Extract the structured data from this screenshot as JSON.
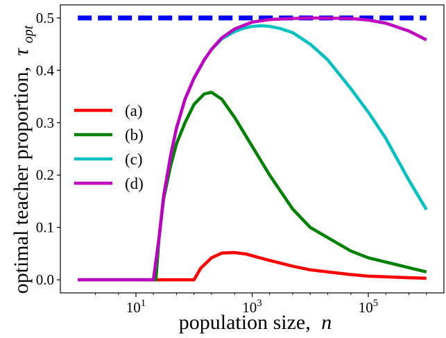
{
  "chart_data": {
    "type": "line",
    "xlabel_main": "population size,",
    "xlabel_symbol": "n",
    "ylabel_main": "optimal teacher proportion,",
    "ylabel_symbol": "τ",
    "ylabel_subscript": "opt",
    "xscale": "log",
    "xlim": [
      0.5,
      2000000
    ],
    "ylim": [
      -0.025,
      0.525
    ],
    "xticks": [
      {
        "base": "10",
        "exp": "1",
        "value": 10
      },
      {
        "base": "10",
        "exp": "3",
        "value": 1000
      },
      {
        "base": "10",
        "exp": "5",
        "value": 100000
      }
    ],
    "xminor_ticks": [
      2,
      5,
      20,
      50,
      100,
      200,
      500,
      2000,
      5000,
      10000,
      20000,
      50000,
      200000,
      500000,
      1000000
    ],
    "yticks": [
      {
        "label": "0.0",
        "value": 0.0
      },
      {
        "label": "0.1",
        "value": 0.1
      },
      {
        "label": "0.2",
        "value": 0.2
      },
      {
        "label": "0.3",
        "value": 0.3
      },
      {
        "label": "0.4",
        "value": 0.4
      },
      {
        "label": "0.5",
        "value": 0.5
      }
    ],
    "legend_position": "center-left",
    "reference_line": {
      "y": 0.5,
      "x_from": 1,
      "x_to": 1000000,
      "color": "#0000ff",
      "style": "dashed"
    },
    "series": [
      {
        "name": "(a)",
        "color": "#ff0000",
        "x": [
          1,
          5,
          10,
          50,
          100,
          130,
          200,
          300,
          500,
          800,
          1000,
          2000,
          5000,
          10000,
          50000,
          100000,
          500000,
          1000000
        ],
        "y": [
          0,
          0,
          0,
          0,
          0,
          0.022,
          0.042,
          0.051,
          0.052,
          0.049,
          0.046,
          0.037,
          0.026,
          0.019,
          0.01,
          0.007,
          0.004,
          0.003
        ]
      },
      {
        "name": "(b)",
        "color": "#008000",
        "x": [
          1,
          10,
          22,
          25,
          30,
          40,
          50,
          70,
          100,
          150,
          200,
          300,
          500,
          1000,
          2000,
          5000,
          10000,
          50000,
          100000,
          1000000
        ],
        "y": [
          0,
          0,
          0,
          0.08,
          0.155,
          0.22,
          0.26,
          0.3,
          0.335,
          0.355,
          0.358,
          0.345,
          0.31,
          0.255,
          0.2,
          0.135,
          0.1,
          0.055,
          0.042,
          0.015
        ]
      },
      {
        "name": "(c)",
        "color": "#00c0c0",
        "x": [
          1,
          10,
          20,
          25,
          30,
          40,
          50,
          70,
          100,
          150,
          200,
          300,
          500,
          700,
          1000,
          1500,
          2000,
          3000,
          5000,
          10000,
          20000,
          50000,
          100000,
          200000,
          500000,
          1000000
        ],
        "y": [
          0,
          0,
          0,
          0.08,
          0.16,
          0.24,
          0.29,
          0.345,
          0.385,
          0.42,
          0.44,
          0.46,
          0.474,
          0.48,
          0.484,
          0.485,
          0.484,
          0.48,
          0.472,
          0.45,
          0.42,
          0.365,
          0.32,
          0.27,
          0.19,
          0.134
        ]
      },
      {
        "name": "(d)",
        "color": "#c000c0",
        "x": [
          1,
          10,
          20,
          25,
          30,
          40,
          50,
          70,
          100,
          150,
          200,
          300,
          500,
          1000,
          2000,
          5000,
          10000,
          50000,
          100000,
          200000,
          500000,
          1000000
        ],
        "y": [
          0,
          0,
          0,
          0.08,
          0.16,
          0.24,
          0.29,
          0.345,
          0.385,
          0.42,
          0.44,
          0.462,
          0.479,
          0.492,
          0.497,
          0.499,
          0.5,
          0.499,
          0.496,
          0.49,
          0.475,
          0.458
        ]
      }
    ]
  }
}
